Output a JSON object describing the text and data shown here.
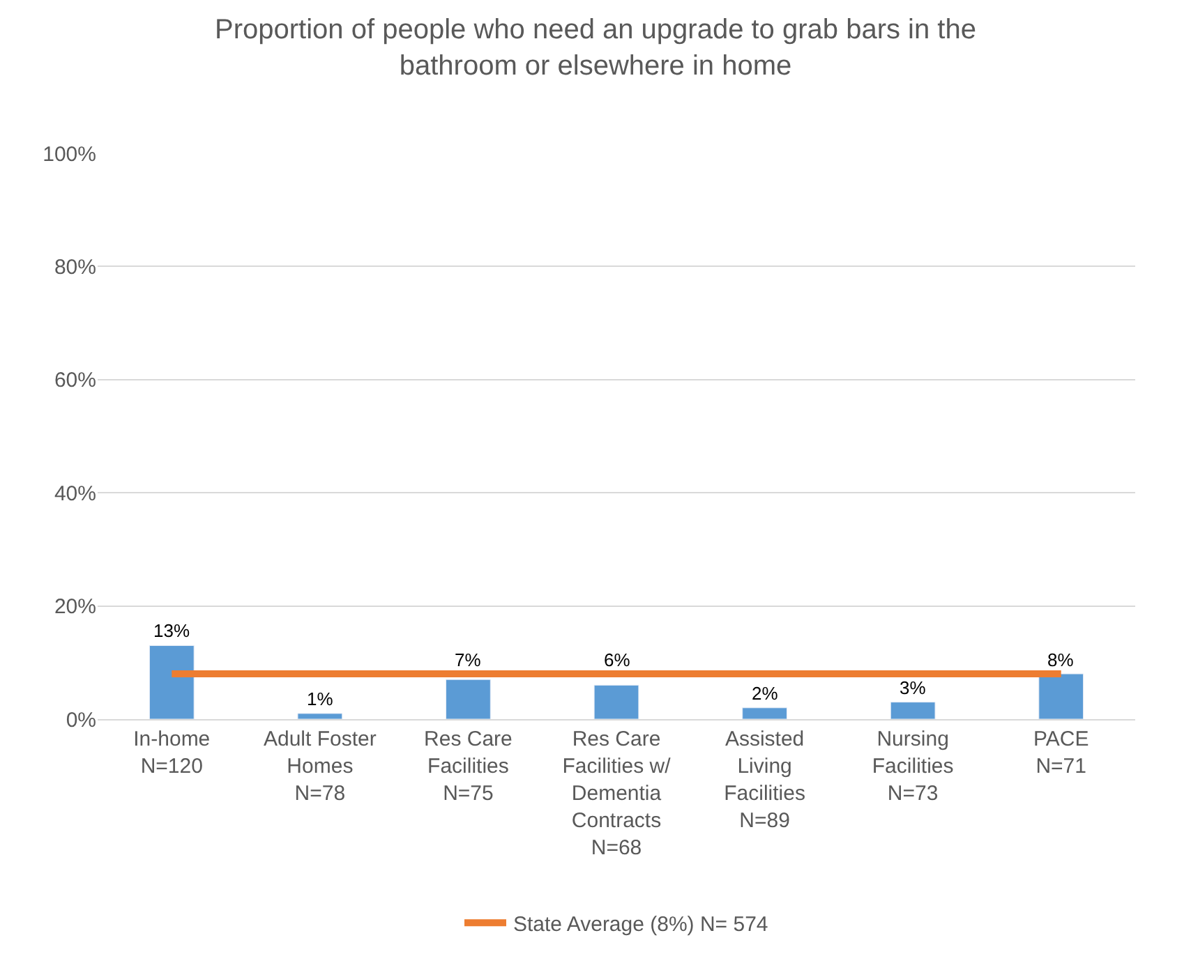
{
  "chart_data": {
    "type": "bar",
    "title": "Proportion of people who need an upgrade to grab bars in the\nbathroom or elsewhere in home",
    "categories": [
      "In-home\nN=120",
      "Adult Foster\nHomes\nN=78",
      "Res Care\nFacilities\nN=75",
      "Res Care\nFacilities w/\nDementia\nContracts\nN=68",
      "Assisted\nLiving\nFacilities\nN=89",
      "Nursing\nFacilities\nN=73",
      "PACE\nN=71"
    ],
    "series": [
      {
        "color": "#5b9bd5",
        "values": [
          13,
          1,
          7,
          6,
          2,
          3,
          8
        ],
        "value_labels": [
          "13%",
          "1%",
          "7%",
          "6%",
          "2%",
          "3%",
          "8%"
        ]
      },
      {
        "type": "line",
        "name": "State Average (8%) N= 574",
        "color": "#ed7d31",
        "values": [
          8,
          8,
          8,
          8,
          8,
          8,
          8
        ],
        "marker": "none",
        "line_style": "solid"
      }
    ],
    "ylim": [
      0,
      100
    ],
    "yticks": [
      {
        "value": 0,
        "label": "0%"
      },
      {
        "value": 20,
        "label": "20%"
      },
      {
        "value": 40,
        "label": "40%"
      },
      {
        "value": 60,
        "label": "60%"
      },
      {
        "value": 80,
        "label": "80%"
      },
      {
        "value": 100,
        "label": "100%"
      }
    ],
    "grid": "y",
    "legend": "bottom"
  }
}
